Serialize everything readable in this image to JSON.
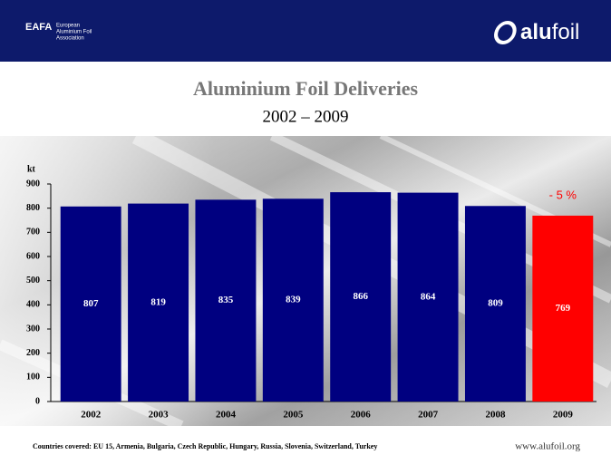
{
  "header": {
    "org": "EAFA",
    "org_lines": [
      "European",
      "Aluminium Foil",
      "Association"
    ],
    "logo": [
      "alu",
      "foil"
    ]
  },
  "chart_data": {
    "type": "bar",
    "title": "Aluminium Foil Deliveries",
    "subtitle": "2002 – 2009",
    "y_label": "kt",
    "categories": [
      "2002",
      "2003",
      "2004",
      "2005",
      "2006",
      "2007",
      "2008",
      "2009"
    ],
    "values": [
      807,
      819,
      835,
      839,
      866,
      864,
      809,
      769
    ],
    "colors": [
      "#000080",
      "#000080",
      "#000080",
      "#000080",
      "#000080",
      "#000080",
      "#000080",
      "#ff0000"
    ],
    "ylim": [
      0,
      900
    ],
    "yticks": [
      0,
      100,
      200,
      300,
      400,
      500,
      600,
      700,
      800,
      900
    ],
    "annotation": "- 5 %"
  },
  "footer": {
    "note": "Countries covered: EU 15, Armenia, Bulgaria, Czech Republic, Hungary, Russia, Slovenia, Switzerland, Turkey",
    "url": "www.alufoil.org"
  }
}
